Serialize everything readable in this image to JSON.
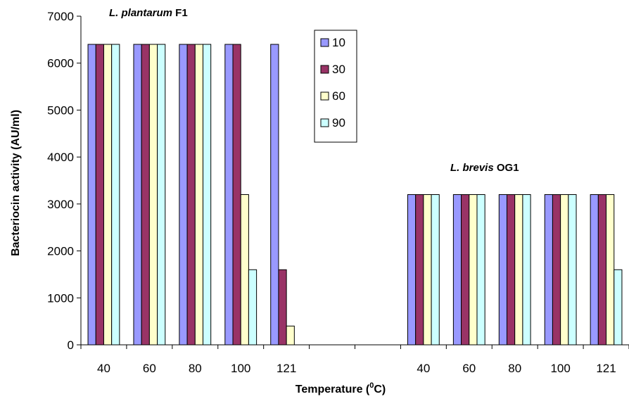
{
  "chart_data": {
    "type": "bar",
    "ylabel": "Bacteriocin activity (AU/ml)",
    "xlabel": {
      "main": "Temperature (",
      "sup": "0",
      "end": "C)"
    },
    "ylim": [
      0,
      7000
    ],
    "yticks": [
      0,
      1000,
      2000,
      3000,
      4000,
      5000,
      6000,
      7000
    ],
    "categories": [
      "40",
      "60",
      "80",
      "100",
      "121",
      "",
      "",
      "40",
      "60",
      "80",
      "100",
      "121"
    ],
    "series": [
      {
        "name": "10",
        "color": "#9999ff",
        "values": [
          6400,
          6400,
          6400,
          6400,
          6400,
          null,
          null,
          3200,
          3200,
          3200,
          3200,
          3200
        ]
      },
      {
        "name": "30",
        "color": "#993366",
        "values": [
          6400,
          6400,
          6400,
          6400,
          1600,
          null,
          null,
          3200,
          3200,
          3200,
          3200,
          3200
        ]
      },
      {
        "name": "60",
        "color": "#ffffcc",
        "values": [
          6400,
          6400,
          6400,
          3200,
          400,
          null,
          null,
          3200,
          3200,
          3200,
          3200,
          3200
        ]
      },
      {
        "name": "90",
        "color": "#ccffff",
        "values": [
          6400,
          6400,
          6400,
          1600,
          0,
          null,
          null,
          3200,
          3200,
          3200,
          3200,
          1600
        ]
      }
    ],
    "annotations": [
      {
        "italic": "L. plantarum",
        "bold": " F1"
      },
      {
        "italic": "L. brevis",
        "bold": " OG1"
      }
    ],
    "legend": "top-center",
    "grid": false
  }
}
